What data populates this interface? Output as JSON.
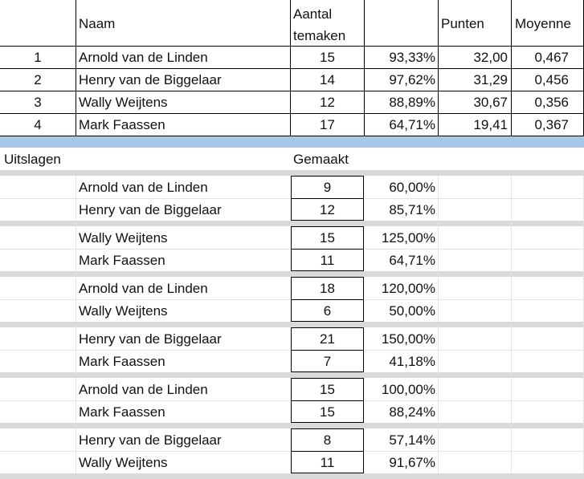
{
  "ranking": {
    "headers": {
      "naam": "Naam",
      "aantal_line1": "Aantal",
      "aantal_line2": "temaken",
      "punten": "Punten",
      "moyenne": "Moyenne"
    },
    "rows": [
      {
        "nr": "1",
        "naam": "Arnold van de Linden",
        "aantal": "15",
        "pct": "93,33%",
        "punten": "32,00",
        "moyenne": "0,467"
      },
      {
        "nr": "2",
        "naam": "Henry van de Biggelaar",
        "aantal": "14",
        "pct": "97,62%",
        "punten": "31,29",
        "moyenne": "0,456"
      },
      {
        "nr": "3",
        "naam": "Wally Weijtens",
        "aantal": "12",
        "pct": "88,89%",
        "punten": "30,67",
        "moyenne": "0,356"
      },
      {
        "nr": "4",
        "naam": "Mark Faassen",
        "aantal": "17",
        "pct": "64,71%",
        "punten": "19,41",
        "moyenne": "0,367"
      }
    ]
  },
  "results": {
    "label": "Uitslagen",
    "gemaakt_header": "Gemaakt",
    "matches": [
      {
        "p1": {
          "naam": "Arnold van de Linden",
          "gemaakt": "9",
          "pct": "60,00%"
        },
        "p2": {
          "naam": "Henry van de Biggelaar",
          "gemaakt": "12",
          "pct": "85,71%"
        }
      },
      {
        "p1": {
          "naam": "Wally Weijtens",
          "gemaakt": "15",
          "pct": "125,00%"
        },
        "p2": {
          "naam": "Mark Faassen",
          "gemaakt": "11",
          "pct": "64,71%"
        }
      },
      {
        "p1": {
          "naam": "Arnold van de Linden",
          "gemaakt": "18",
          "pct": "120,00%"
        },
        "p2": {
          "naam": "Wally Weijtens",
          "gemaakt": "6",
          "pct": "50,00%"
        }
      },
      {
        "p1": {
          "naam": "Henry van de Biggelaar",
          "gemaakt": "21",
          "pct": "150,00%"
        },
        "p2": {
          "naam": "Mark Faassen",
          "gemaakt": "7",
          "pct": "41,18%"
        }
      },
      {
        "p1": {
          "naam": "Arnold van de Linden",
          "gemaakt": "15",
          "pct": "100,00%"
        },
        "p2": {
          "naam": "Mark Faassen",
          "gemaakt": "15",
          "pct": "88,24%"
        }
      },
      {
        "p1": {
          "naam": "Henry van de Biggelaar",
          "gemaakt": "8",
          "pct": "57,14%"
        },
        "p2": {
          "naam": "Wally Weijtens",
          "gemaakt": "11",
          "pct": "91,67%"
        }
      }
    ]
  }
}
